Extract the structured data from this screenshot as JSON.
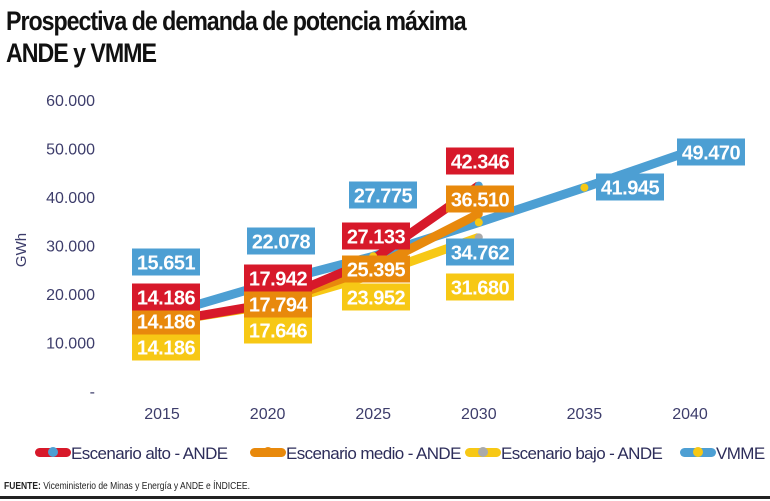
{
  "title_line1": "Prospectiva de demanda de potencia máxima",
  "title_line2": "ANDE y VMME",
  "source_label": "FUENTE:",
  "source_text": "Viceministerio de Minas y Energía y ANDE e ÍNDICEE.",
  "chart_data": {
    "type": "line",
    "ylabel": "GWh",
    "ylim": [
      0,
      60000
    ],
    "yticks": [
      0,
      10000,
      20000,
      30000,
      40000,
      50000,
      60000
    ],
    "ytick_labels": [
      "-",
      "10.000",
      "20.000",
      "30.000",
      "40.000",
      "50.000",
      "60.000"
    ],
    "x": [
      2015,
      2020,
      2025,
      2030,
      2035,
      2040
    ],
    "grid": false,
    "legend_position": "bottom",
    "data_labels": true,
    "series": [
      {
        "name": "Escenario alto - ANDE",
        "color": "#d7192a",
        "marker_color": "#4d9fd3",
        "x": [
          2015,
          2020,
          2025,
          2030
        ],
        "values": [
          14186,
          17942,
          27133,
          42346
        ],
        "labels": [
          "14.186",
          "17.942",
          "27.133",
          "42.346"
        ]
      },
      {
        "name": "Escenario medio - ANDE",
        "color": "#e8890c",
        "marker_color": "#e8890c",
        "x": [
          2015,
          2020,
          2025,
          2030
        ],
        "values": [
          14186,
          17794,
          25395,
          36510
        ],
        "labels": [
          "14.186",
          "17.794",
          "25.395",
          "36.510"
        ]
      },
      {
        "name": "Escenario bajo - ANDE",
        "color": "#f7c815",
        "marker_color": "#aaaaaa",
        "x": [
          2015,
          2020,
          2025,
          2030
        ],
        "values": [
          14186,
          17646,
          23952,
          31680
        ],
        "labels": [
          "14.186",
          "17.646",
          "23.952",
          "31.680"
        ]
      },
      {
        "name": "VMME",
        "color": "#4d9fd3",
        "marker_color": "#f7c815",
        "x": [
          2015,
          2020,
          2025,
          2030,
          2035,
          2040
        ],
        "values": [
          15651,
          22078,
          27775,
          34762,
          41945,
          49470
        ],
        "labels": [
          "15.651",
          "22.078",
          "27.775",
          "34.762",
          "41.945",
          "49.470"
        ]
      }
    ]
  }
}
